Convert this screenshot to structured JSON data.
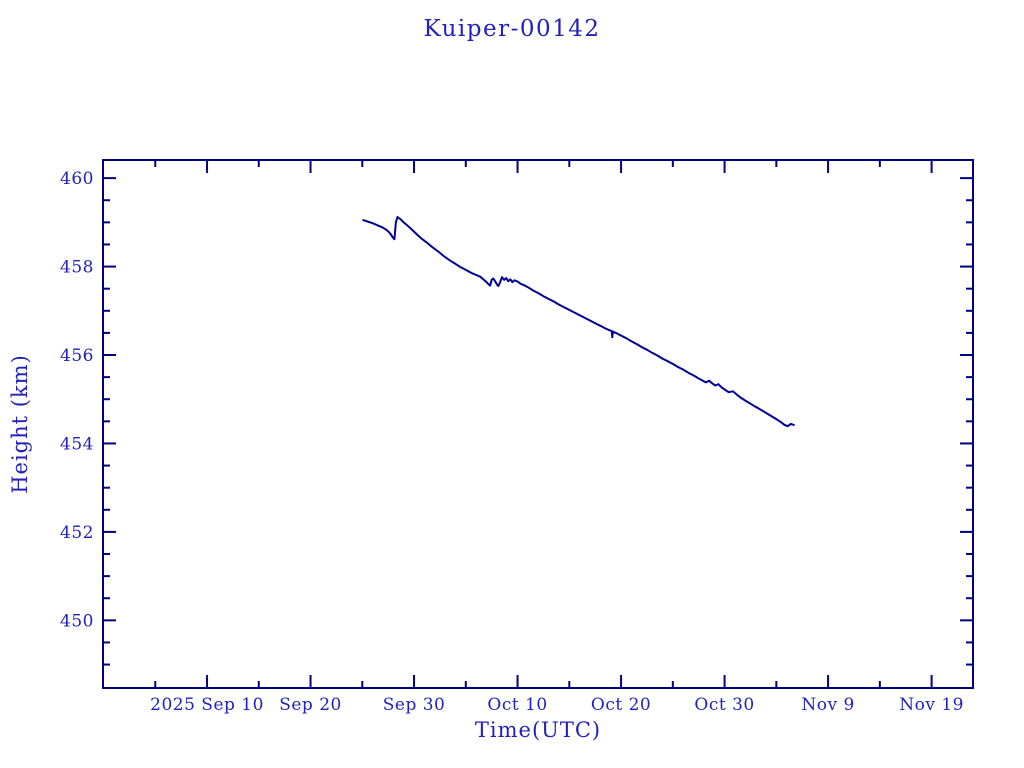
{
  "page": {
    "background": "#ffffff"
  },
  "chart_data": {
    "type": "line",
    "title": "Kuiper-00142",
    "xlabel": "Time(UTC)",
    "ylabel": "Height (km)",
    "legend": "none",
    "grid": false,
    "x_unit": "days since 2025-09-10 00:00 UTC",
    "x_range": [
      -10.05,
      74.0
    ],
    "y_range": [
      448.47,
      460.41
    ],
    "colors": {
      "axis": "#000080",
      "line": "#000099",
      "text": "#2222bb",
      "background": "#ffffff"
    },
    "x_axis": {
      "minor_step": 5,
      "major_ticks": [
        {
          "t": 0,
          "label": "2025 Sep 10"
        },
        {
          "t": 10,
          "label": "Sep 20"
        },
        {
          "t": 20,
          "label": "Sep 30"
        },
        {
          "t": 30,
          "label": "Oct 10"
        },
        {
          "t": 40,
          "label": "Oct 20"
        },
        {
          "t": 50,
          "label": "Oct 30"
        },
        {
          "t": 60,
          "label": "Nov 9"
        },
        {
          "t": 70,
          "label": "Nov 19"
        }
      ]
    },
    "y_axis": {
      "minor_step": 0.5,
      "major_ticks": [
        {
          "v": 450,
          "label": "450"
        },
        {
          "v": 452,
          "label": "452"
        },
        {
          "v": 454,
          "label": "454"
        },
        {
          "v": 456,
          "label": "456"
        },
        {
          "v": 458,
          "label": "458"
        },
        {
          "v": 460,
          "label": "460"
        }
      ]
    },
    "series": [
      {
        "name": "Kuiper-00142 height",
        "points": [
          [
            15.1,
            459.05
          ],
          [
            15.5,
            459.02
          ],
          [
            16.0,
            458.98
          ],
          [
            16.5,
            458.93
          ],
          [
            17.0,
            458.88
          ],
          [
            17.4,
            458.82
          ],
          [
            17.7,
            458.75
          ],
          [
            17.95,
            458.66
          ],
          [
            18.1,
            458.62
          ],
          [
            18.25,
            459.0
          ],
          [
            18.4,
            459.12
          ],
          [
            18.7,
            459.07
          ],
          [
            19.0,
            459.0
          ],
          [
            19.3,
            458.94
          ],
          [
            19.6,
            458.88
          ],
          [
            20.0,
            458.79
          ],
          [
            20.4,
            458.7
          ],
          [
            20.8,
            458.62
          ],
          [
            21.2,
            458.55
          ],
          [
            21.6,
            458.47
          ],
          [
            22.0,
            458.4
          ],
          [
            22.4,
            458.33
          ],
          [
            22.8,
            458.25
          ],
          [
            23.2,
            458.18
          ],
          [
            23.6,
            458.12
          ],
          [
            24.0,
            458.06
          ],
          [
            24.4,
            458.0
          ],
          [
            24.8,
            457.95
          ],
          [
            25.2,
            457.9
          ],
          [
            25.6,
            457.85
          ],
          [
            26.0,
            457.81
          ],
          [
            26.4,
            457.77
          ],
          [
            26.7,
            457.71
          ],
          [
            27.0,
            457.65
          ],
          [
            27.2,
            457.6
          ],
          [
            27.35,
            457.57
          ],
          [
            27.5,
            457.7
          ],
          [
            27.65,
            457.73
          ],
          [
            27.8,
            457.68
          ],
          [
            28.0,
            457.6
          ],
          [
            28.15,
            457.56
          ],
          [
            28.3,
            457.64
          ],
          [
            28.5,
            457.76
          ],
          [
            28.7,
            457.7
          ],
          [
            28.9,
            457.74
          ],
          [
            29.1,
            457.67
          ],
          [
            29.3,
            457.71
          ],
          [
            29.5,
            457.65
          ],
          [
            29.7,
            457.69
          ],
          [
            30.0,
            457.66
          ],
          [
            30.3,
            457.61
          ],
          [
            30.7,
            457.57
          ],
          [
            31.1,
            457.52
          ],
          [
            31.5,
            457.46
          ],
          [
            32.0,
            457.4
          ],
          [
            32.5,
            457.33
          ],
          [
            33.0,
            457.27
          ],
          [
            33.5,
            457.21
          ],
          [
            34.0,
            457.14
          ],
          [
            34.5,
            457.08
          ],
          [
            35.0,
            457.02
          ],
          [
            35.5,
            456.96
          ],
          [
            36.0,
            456.9
          ],
          [
            36.5,
            456.84
          ],
          [
            37.0,
            456.78
          ],
          [
            37.5,
            456.72
          ],
          [
            38.0,
            456.66
          ],
          [
            38.5,
            456.6
          ],
          [
            38.9,
            456.56
          ],
          [
            39.1,
            456.54
          ],
          [
            39.15,
            456.4
          ],
          [
            39.2,
            456.53
          ],
          [
            39.5,
            456.5
          ],
          [
            40.0,
            456.44
          ],
          [
            40.5,
            456.38
          ],
          [
            41.0,
            456.31
          ],
          [
            41.5,
            456.25
          ],
          [
            42.0,
            456.18
          ],
          [
            42.5,
            456.12
          ],
          [
            43.0,
            456.05
          ],
          [
            43.5,
            455.99
          ],
          [
            44.0,
            455.92
          ],
          [
            44.5,
            455.86
          ],
          [
            45.0,
            455.8
          ],
          [
            45.5,
            455.73
          ],
          [
            46.0,
            455.67
          ],
          [
            46.5,
            455.6
          ],
          [
            47.0,
            455.54
          ],
          [
            47.5,
            455.47
          ],
          [
            47.9,
            455.42
          ],
          [
            48.2,
            455.38
          ],
          [
            48.5,
            455.42
          ],
          [
            48.8,
            455.36
          ],
          [
            49.1,
            455.31
          ],
          [
            49.4,
            455.34
          ],
          [
            49.7,
            455.27
          ],
          [
            50.0,
            455.22
          ],
          [
            50.4,
            455.16
          ],
          [
            50.8,
            455.18
          ],
          [
            51.2,
            455.1
          ],
          [
            51.6,
            455.03
          ],
          [
            52.0,
            454.97
          ],
          [
            52.5,
            454.9
          ],
          [
            53.0,
            454.83
          ],
          [
            53.5,
            454.76
          ],
          [
            54.0,
            454.69
          ],
          [
            54.5,
            454.62
          ],
          [
            55.0,
            454.55
          ],
          [
            55.4,
            454.49
          ],
          [
            55.8,
            454.42
          ],
          [
            56.1,
            454.39
          ],
          [
            56.4,
            454.44
          ],
          [
            56.7,
            454.42
          ]
        ]
      }
    ]
  }
}
